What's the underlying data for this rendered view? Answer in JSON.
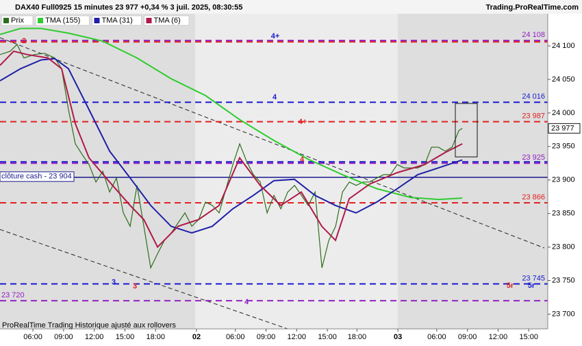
{
  "header": {
    "title": "DAX40 Full0925 15 minutes 23 977 +0,34 % 3 juil. 2025, 08:30:55",
    "site": "Trading.ProRealTime.com"
  },
  "footer": "ProRealTime Trading  Historique ajusté aux rollovers",
  "chart_data": {
    "type": "line",
    "xlim": [
      2.78,
      56.36
    ],
    "ylim": [
      23678,
      24148
    ],
    "xticks": [
      {
        "value": 6,
        "label": "06:00"
      },
      {
        "value": 9,
        "label": "09:00"
      },
      {
        "value": 12,
        "label": "12:00"
      },
      {
        "value": 15,
        "label": "15:00"
      },
      {
        "value": 18,
        "label": "18:00"
      },
      {
        "value": 22,
        "label": "02"
      },
      {
        "value": 25.8,
        "label": "06:00"
      },
      {
        "value": 28.8,
        "label": "09:00"
      },
      {
        "value": 31.8,
        "label": "12:00"
      },
      {
        "value": 34.8,
        "label": "15:00"
      },
      {
        "value": 37.7,
        "label": "18:00"
      },
      {
        "value": 41.7,
        "label": "03"
      },
      {
        "value": 45.5,
        "label": "06:00"
      },
      {
        "value": 48.5,
        "label": "09:00"
      },
      {
        "value": 51.5,
        "label": "12:00"
      },
      {
        "value": 54.5,
        "label": "15:00"
      }
    ],
    "yticks": [
      {
        "value": 23700,
        "label": "23 700"
      },
      {
        "value": 23750,
        "label": "23 750"
      },
      {
        "value": 23800,
        "label": "23 800"
      },
      {
        "value": 23850,
        "label": "23 850"
      },
      {
        "value": 23900,
        "label": "23 900"
      },
      {
        "value": 23950,
        "label": "23 950"
      },
      {
        "value": 24000,
        "label": "24 000"
      },
      {
        "value": 24050,
        "label": "24 050"
      },
      {
        "value": 24100,
        "label": "24 100"
      }
    ],
    "series": [
      {
        "name": "Prix",
        "color": "#2d6e1a",
        "x": [
          2.78,
          3.78,
          4.45,
          5.12,
          6.13,
          7.13,
          8.14,
          8.81,
          9.48,
          10.15,
          10.82,
          11.49,
          12.16,
          12.83,
          13.5,
          14.17,
          14.84,
          15.51,
          16.18,
          16.85,
          17.52,
          18.19,
          18.86,
          19.53,
          20.2,
          20.87,
          21.54,
          22.21,
          22.88,
          23.55,
          24.22,
          24.89,
          25.56,
          26.23,
          26.9,
          27.57,
          28.24,
          28.91,
          29.58,
          30.25,
          30.92,
          31.59,
          32.26,
          32.93,
          33.6,
          34.27,
          34.94,
          35.61,
          36.28,
          36.95,
          37.62,
          38.29,
          38.96,
          39.63,
          40.3,
          40.97,
          41.64,
          42.31,
          42.98,
          43.65,
          44.32,
          44.99,
          45.66,
          46.33,
          47.0,
          47.67,
          48.0
        ],
        "values": [
          24087,
          24092,
          24102,
          24082,
          24087,
          24089,
          24082,
          24066,
          24005,
          23954,
          23938,
          23923,
          23897,
          23913,
          23882,
          23903,
          23851,
          23831,
          23892,
          23831,
          23769,
          23790,
          23810,
          23821,
          23836,
          23851,
          23831,
          23841,
          23867,
          23862,
          23851,
          23887,
          23923,
          23954,
          23928,
          23908,
          23897,
          23851,
          23877,
          23857,
          23882,
          23892,
          23877,
          23862,
          23882,
          23769,
          23810,
          23831,
          23882,
          23897,
          23892,
          23897,
          23897,
          23903,
          23908,
          23908,
          23923,
          23918,
          23918,
          23918,
          23923,
          23949,
          23949,
          23943,
          23949,
          23974,
          23977
        ]
      },
      {
        "name": "TMA (155)",
        "color": "#2ecc2e",
        "x": [
          2.78,
          4.79,
          6.8,
          9.48,
          12.83,
          16.18,
          19.52,
          22.87,
          26.22,
          29.57,
          32.92,
          36.27,
          39.62,
          42.97,
          45.65,
          48.0
        ],
        "values": [
          24117,
          24126,
          24126,
          24119,
          24107,
          24082,
          24051,
          24026,
          23990,
          23959,
          23931,
          23908,
          23887,
          23874,
          23871,
          23873
        ]
      },
      {
        "name": "TMA (31)",
        "color": "#1f1fa8",
        "x": [
          2.78,
          4.79,
          6.8,
          8.14,
          9.48,
          11.49,
          13.5,
          15.51,
          17.52,
          19.52,
          21.53,
          23.54,
          25.55,
          27.56,
          29.57,
          31.58,
          33.59,
          35.6,
          37.61,
          39.62,
          41.63,
          43.64,
          45.65,
          48.0
        ],
        "values": [
          24048,
          24066,
          24079,
          24081,
          24066,
          24005,
          23943,
          23903,
          23862,
          23831,
          23821,
          23831,
          23857,
          23877,
          23899,
          23901,
          23877,
          23862,
          23851,
          23867,
          23887,
          23908,
          23918,
          23930
        ]
      },
      {
        "name": "TMA (6)",
        "color": "#b01848",
        "x": [
          2.78,
          4.12,
          5.46,
          7.47,
          8.81,
          10.15,
          11.49,
          13.5,
          15.51,
          16.85,
          18.19,
          20.2,
          22.2,
          24.21,
          26.22,
          28.23,
          30.24,
          32.25,
          34.26,
          35.6,
          36.94,
          38.95,
          41.63,
          44.31,
          46.32,
          48.0
        ],
        "values": [
          24071,
          24092,
          24087,
          24082,
          24066,
          23984,
          23933,
          23897,
          23862,
          23841,
          23800,
          23831,
          23841,
          23862,
          23933,
          23892,
          23862,
          23882,
          23831,
          23810,
          23872,
          23894,
          23911,
          23923,
          23941,
          23954
        ]
      }
    ],
    "levels": [
      {
        "value": 24106,
        "color": "#e02020",
        "style": "dashed"
      },
      {
        "value": 24108,
        "label": "24 108",
        "color": "#9020c0",
        "style": "dashed"
      },
      {
        "value": 24016,
        "label": "24 016",
        "color": "#1a1ad0",
        "style": "dashed"
      },
      {
        "value": 23987,
        "label": "23 987",
        "color": "#e02020",
        "style": "dashed"
      },
      {
        "value": 23927,
        "color": "#1a1ad0",
        "style": "dashed"
      },
      {
        "value": 23925,
        "label": "23 925",
        "color": "#9020c0",
        "style": "dashed"
      },
      {
        "value": 23904,
        "label": "clôture cash -  23 904",
        "color": "#1a1a90",
        "style": "solid",
        "label_side": "left"
      },
      {
        "value": 23866,
        "label": "23 866",
        "color": "#e02020",
        "style": "dashed"
      },
      {
        "value": 23745,
        "label": "23 745",
        "color": "#1a1ad0",
        "style": "dashed"
      },
      {
        "value": 23720,
        "label": "23 720",
        "color": "#9020c0",
        "style": "dashed",
        "label_side": "left"
      }
    ],
    "last_price": {
      "value": 23977,
      "label": "23 977"
    },
    "zones": [
      {
        "text": "2",
        "color": "#e02020"
      },
      {
        "text": "4+",
        "color": "#1a1ad0"
      },
      {
        "text": "4",
        "color": "#1a1ad0"
      },
      {
        "text": "4+",
        "color": "#e02020"
      },
      {
        "text": "4",
        "color": "#e02020"
      },
      {
        "text": "3",
        "color": "#1a1ad0"
      },
      {
        "text": "3",
        "color": "#e02020"
      },
      {
        "text": "4",
        "color": "#9020c0"
      },
      {
        "text": "5r",
        "color": "#e02020"
      },
      {
        "text": "5r",
        "color": "#1a1ad0"
      }
    ]
  }
}
